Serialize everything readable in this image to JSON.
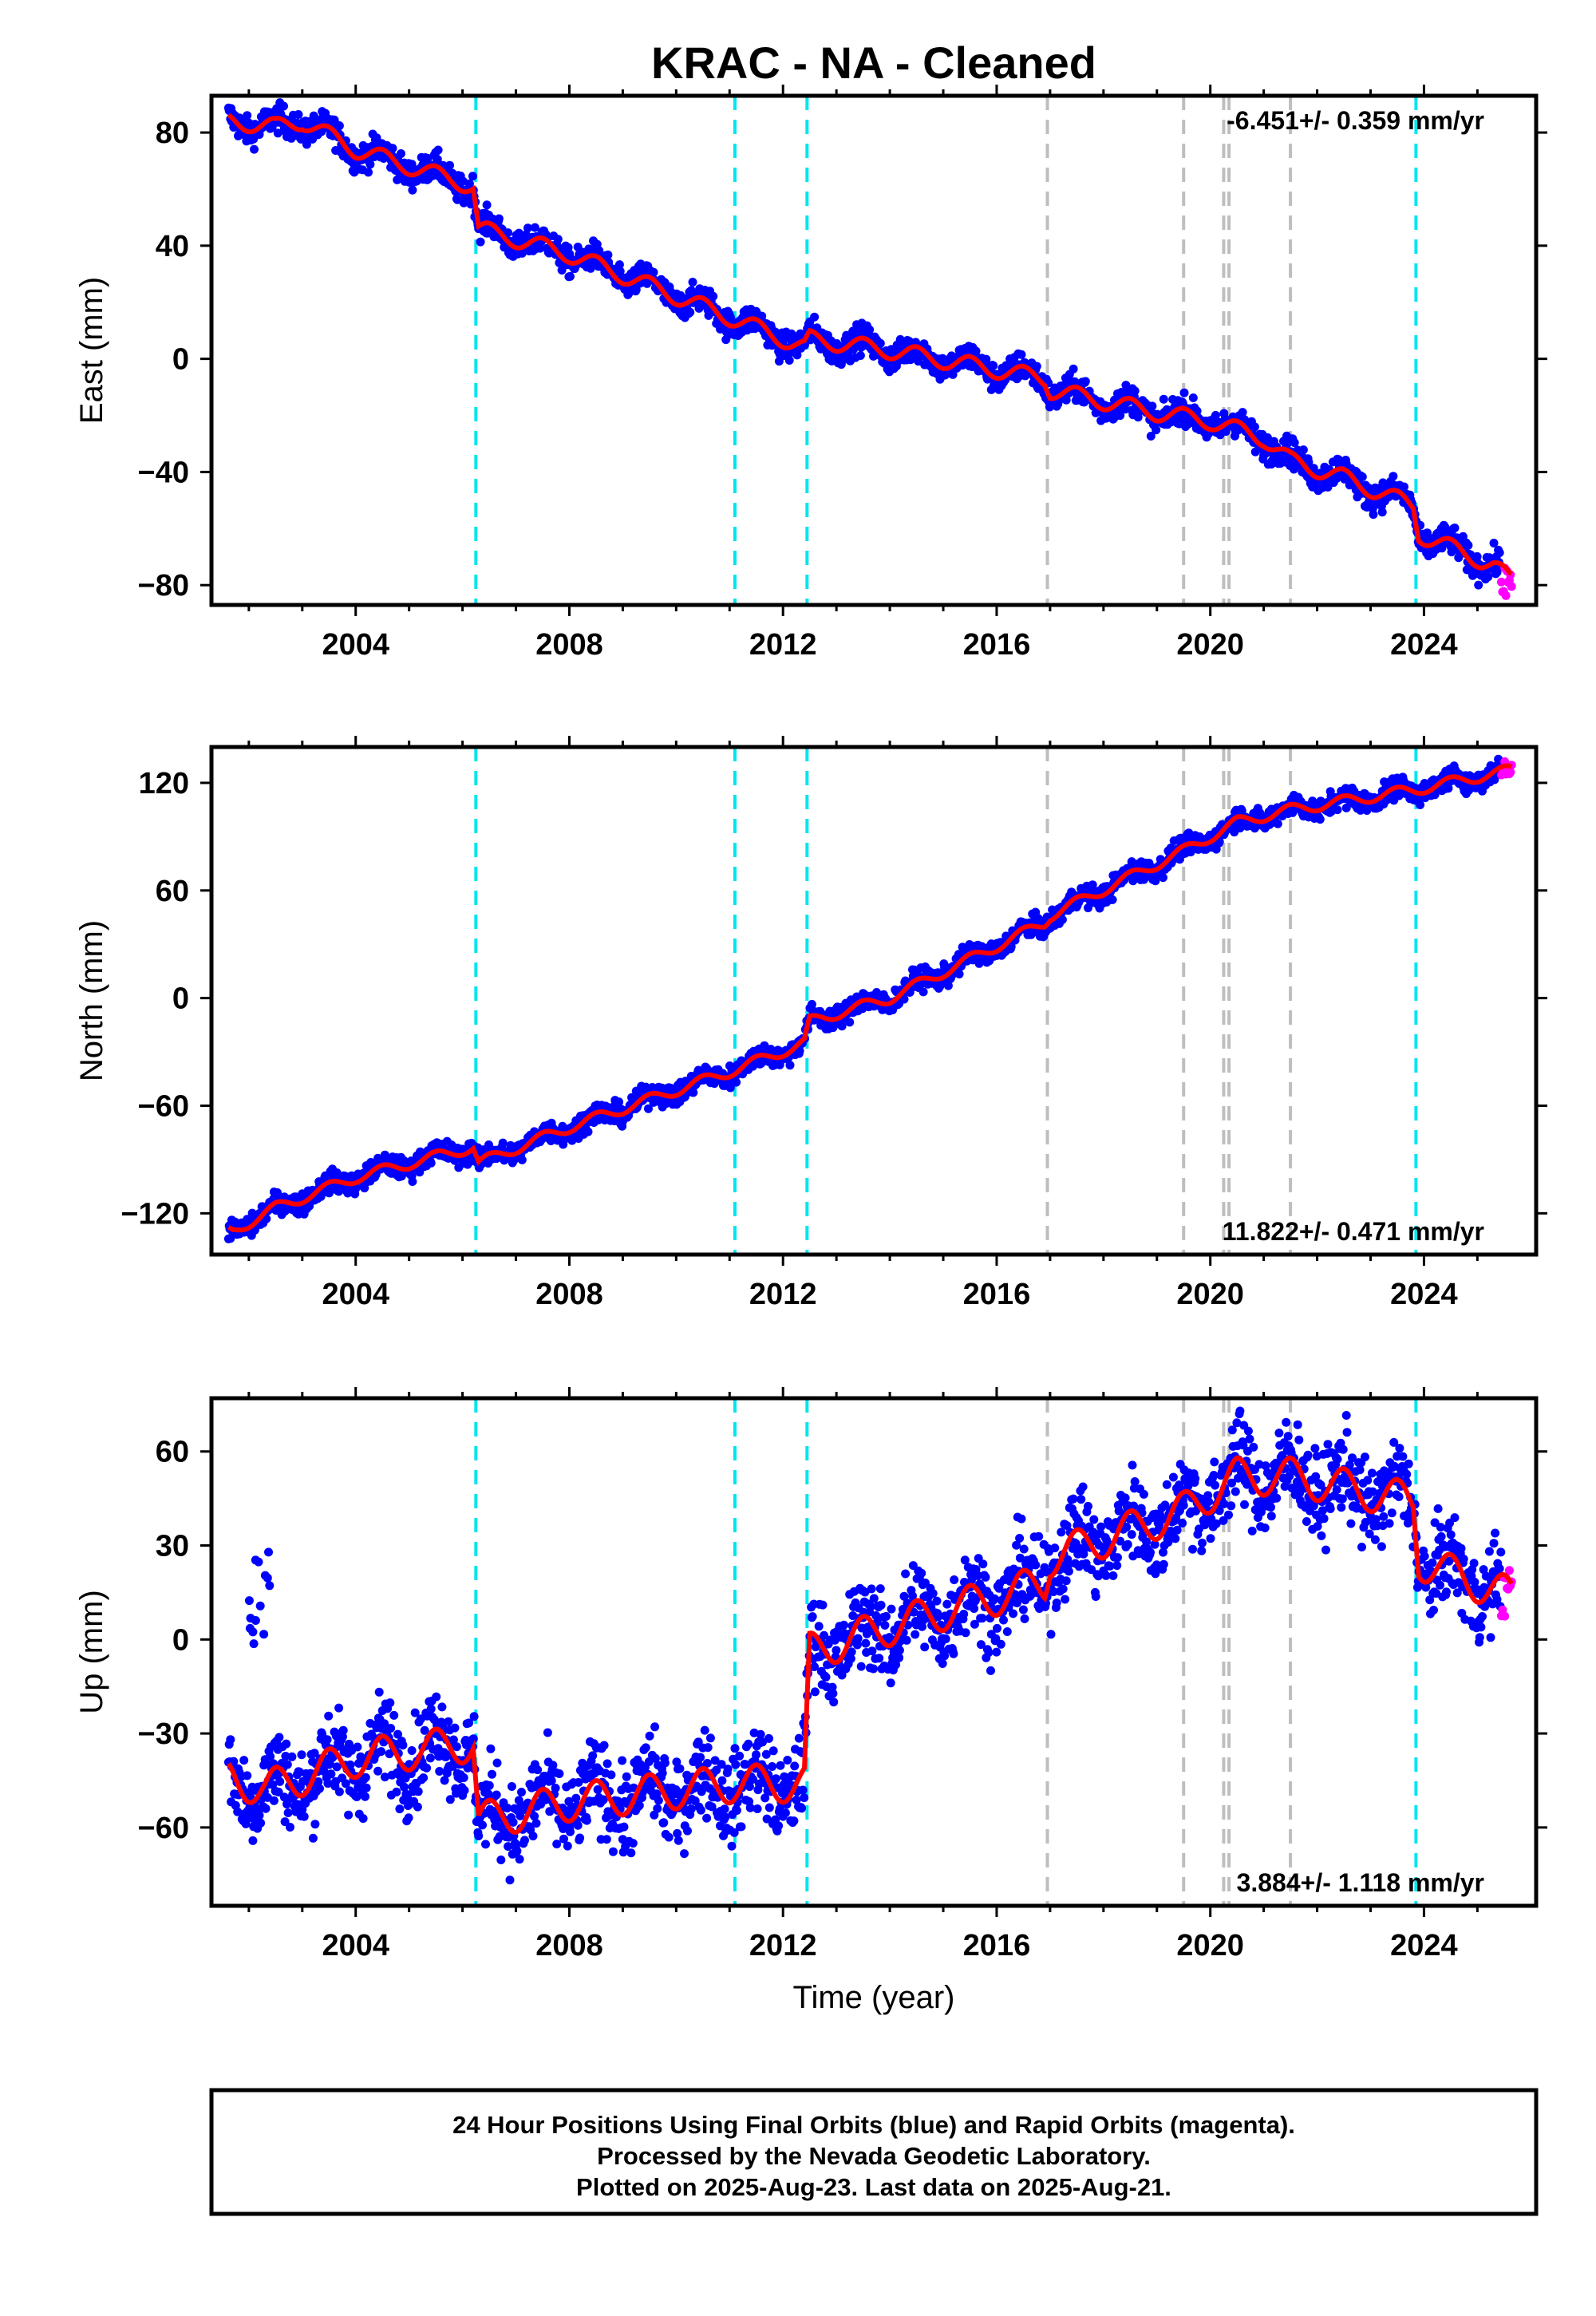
{
  "title": "KRAC  - NA - Cleaned",
  "xlabel": "Time (year)",
  "footer": {
    "line1": "24 Hour Positions Using Final Orbits (blue) and Rapid Orbits (magenta).",
    "line2": "Processed by the Nevada Geodetic Laboratory.",
    "line3": "Plotted on 2025-Aug-23. Last data on 2025-Aug-21."
  },
  "colors": {
    "final": "#0000ff",
    "rapid": "#ff00ff",
    "model": "#ff0000",
    "equipment_change": "#00e5ee",
    "earthquake": "#bebebe"
  },
  "chart_data": [
    {
      "type": "scatter",
      "name": "east",
      "ylabel": "East (mm)",
      "rate_text": "-6.451+/- 0.359 mm/yr",
      "rate_position": "top-right",
      "xlim": [
        2001.3,
        2026.1
      ],
      "ylim": [
        -87,
        93
      ],
      "xticks": [
        2004,
        2008,
        2012,
        2016,
        2020,
        2024
      ],
      "yticks": [
        -80,
        -40,
        0,
        40,
        80
      ],
      "rate_mm_yr": -6.451,
      "anchor_points": [
        [
          2001.7,
          84
        ],
        [
          2002.5,
          82
        ],
        [
          2003.0,
          84
        ],
        [
          2004.0,
          74
        ],
        [
          2006.2,
          61
        ],
        [
          2006.3,
          46
        ],
        [
          2008.0,
          37
        ],
        [
          2011.1,
          14
        ],
        [
          2012.4,
          4
        ],
        [
          2012.5,
          7
        ],
        [
          2014.0,
          3
        ],
        [
          2016.9,
          -7
        ],
        [
          2017.0,
          -11
        ],
        [
          2019.0,
          -19
        ],
        [
          2020.0,
          -22
        ],
        [
          2021.0,
          -28
        ],
        [
          2021.5,
          -36
        ],
        [
          2022.5,
          -42
        ],
        [
          2023.8,
          -52
        ],
        [
          2023.9,
          -62
        ],
        [
          2025.3,
          -73
        ],
        [
          2025.6,
          -78
        ]
      ],
      "seasonal_amp": 3,
      "scatter_noise": 2.5,
      "rapid": {
        "x_range": [
          2025.45,
          2025.64
        ],
        "y_range": [
          -84,
          -74
        ]
      },
      "equipment_changes": [
        2006.25,
        2011.1,
        2012.45,
        2023.85
      ],
      "earthquakes": [
        2016.95,
        2019.5,
        2020.25,
        2020.35,
        2021.5
      ]
    },
    {
      "type": "scatter",
      "name": "north",
      "ylabel": "North (mm)",
      "rate_text": "11.822+/- 0.471 mm/yr",
      "rate_position": "bottom-right",
      "xlim": [
        2001.3,
        2026.1
      ],
      "ylim": [
        -143,
        140
      ],
      "xticks": [
        2004,
        2008,
        2012,
        2016,
        2020,
        2024
      ],
      "yticks": [
        -120,
        -60,
        0,
        60,
        120
      ],
      "rate_mm_yr": 11.822,
      "anchor_points": [
        [
          2001.7,
          -130
        ],
        [
          2002.5,
          -117
        ],
        [
          2004.0,
          -100
        ],
        [
          2006.2,
          -83
        ],
        [
          2006.3,
          -92
        ],
        [
          2008.0,
          -72
        ],
        [
          2011.1,
          -40
        ],
        [
          2012.4,
          -25
        ],
        [
          2012.5,
          -13
        ],
        [
          2014.0,
          0
        ],
        [
          2016.9,
          42
        ],
        [
          2017.0,
          46
        ],
        [
          2019.5,
          82
        ],
        [
          2020.5,
          98
        ],
        [
          2021.5,
          105
        ],
        [
          2023.8,
          116
        ],
        [
          2025.6,
          127
        ]
      ],
      "seasonal_amp": 3,
      "scatter_noise": 3,
      "rapid": {
        "x_range": [
          2025.45,
          2025.64
        ],
        "y_range": [
          124,
          132
        ]
      },
      "equipment_changes": [
        2006.25,
        2011.1,
        2012.45,
        2023.85
      ],
      "earthquakes": [
        2016.95,
        2019.5,
        2020.25,
        2020.35,
        2021.5
      ]
    },
    {
      "type": "scatter",
      "name": "up",
      "ylabel": "Up (mm)",
      "rate_text": "3.884+/- 1.118 mm/yr",
      "rate_position": "bottom-right",
      "xlim": [
        2001.3,
        2026.1
      ],
      "ylim": [
        -85,
        77
      ],
      "xticks": [
        2004,
        2008,
        2012,
        2016,
        2020,
        2024
      ],
      "yticks": [
        -60,
        -30,
        0,
        30,
        60
      ],
      "rate_mm_yr": 3.884,
      "anchor_points": [
        [
          2001.7,
          -44
        ],
        [
          2002.3,
          -48
        ],
        [
          2004.0,
          -38
        ],
        [
          2006.2,
          -33
        ],
        [
          2006.3,
          -58
        ],
        [
          2008.0,
          -52
        ],
        [
          2011.1,
          -46
        ],
        [
          2012.4,
          -46
        ],
        [
          2012.5,
          -4
        ],
        [
          2014.0,
          4
        ],
        [
          2016.9,
          18
        ],
        [
          2017.0,
          26
        ],
        [
          2019.5,
          41
        ],
        [
          2020.5,
          52
        ],
        [
          2021.5,
          52
        ],
        [
          2023.8,
          44
        ],
        [
          2023.9,
          25
        ],
        [
          2025.6,
          14
        ]
      ],
      "seasonal_amp": 6,
      "scatter_noise": 7,
      "outliers": {
        "x_range": [
          2002.0,
          2002.4
        ],
        "y_range": [
          -5,
          30
        ]
      },
      "rapid": {
        "x_range": [
          2025.45,
          2025.64
        ],
        "y_range": [
          5,
          26
        ]
      },
      "equipment_changes": [
        2006.25,
        2011.1,
        2012.45,
        2023.85
      ],
      "earthquakes": [
        2016.95,
        2019.5,
        2020.25,
        2020.35,
        2021.5
      ]
    }
  ]
}
